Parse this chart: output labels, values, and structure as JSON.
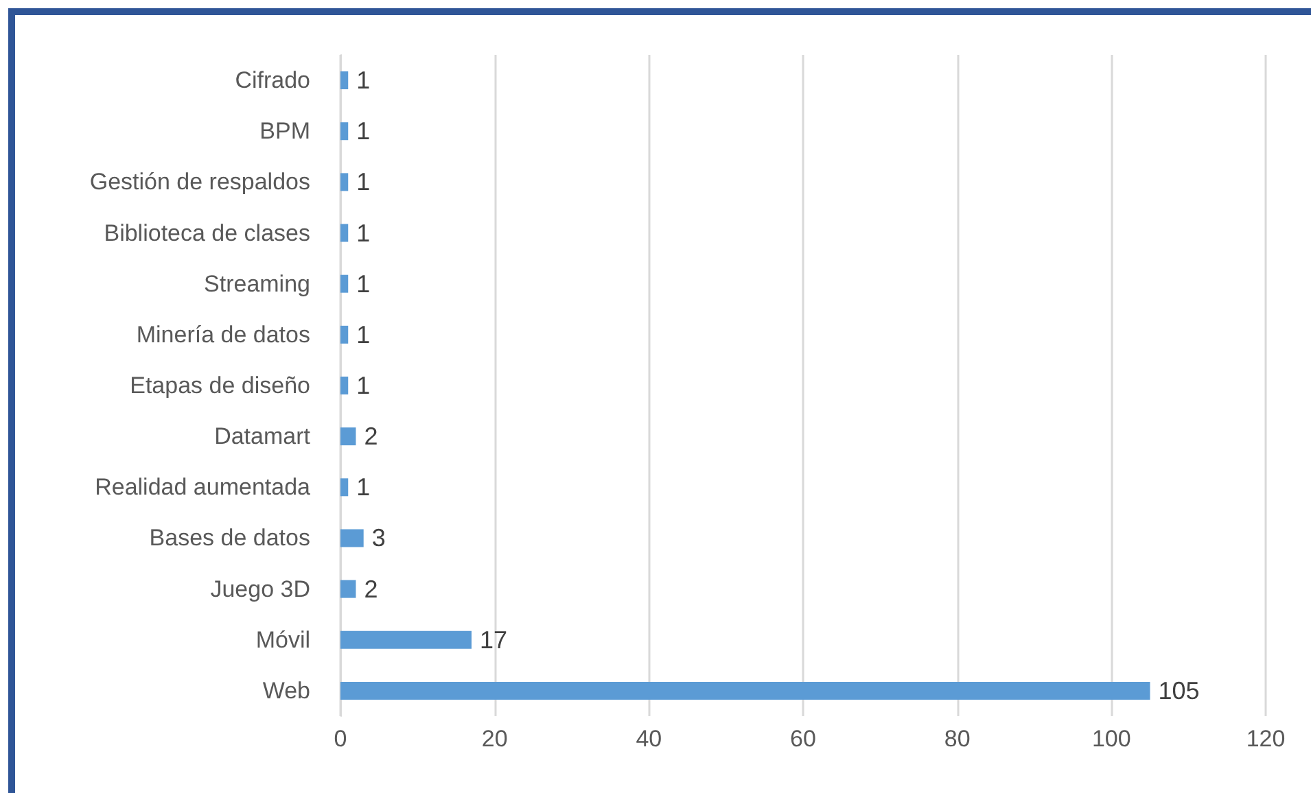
{
  "chart_data": {
    "type": "bar",
    "orientation": "horizontal",
    "categories": [
      "Cifrado",
      "BPM",
      "Gestión de respaldos",
      "Biblioteca de clases",
      "Streaming",
      "Minería de datos",
      "Etapas de diseño",
      "Datamart",
      "Realidad aumentada",
      "Bases de datos",
      "Juego 3D",
      "Móvil",
      "Web"
    ],
    "values": [
      1,
      1,
      1,
      1,
      1,
      1,
      1,
      2,
      1,
      3,
      2,
      17,
      105
    ],
    "color": "#5b9bd5",
    "xlim": [
      0,
      120
    ],
    "xticks": [
      0,
      20,
      40,
      60,
      80,
      100,
      120
    ],
    "grid": "x",
    "data_labels": true
  }
}
